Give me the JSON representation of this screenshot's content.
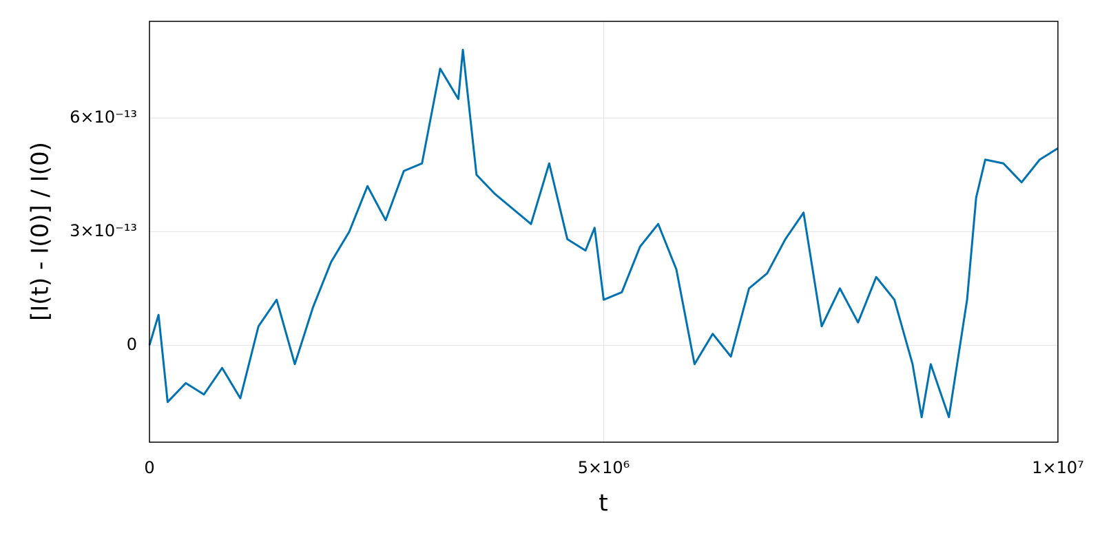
{
  "chart_data": {
    "type": "line",
    "x_label": "t",
    "y_label": "[I(t) - I(0)] / I(0)",
    "x": [
      0,
      100000,
      200000,
      400000,
      600000,
      800000,
      1000000,
      1200000,
      1400000,
      1600000,
      1800000,
      2000000,
      2200000,
      2400000,
      2600000,
      2800000,
      3000000,
      3200000,
      3400000,
      3450000,
      3600000,
      3800000,
      4000000,
      4200000,
      4400000,
      4600000,
      4800000,
      4900000,
      5000000,
      5200000,
      5400000,
      5600000,
      5800000,
      6000000,
      6200000,
      6400000,
      6600000,
      6800000,
      7000000,
      7200000,
      7400000,
      7600000,
      7800000,
      8000000,
      8200000,
      8400000,
      8500000,
      8600000,
      8800000,
      9000000,
      9100000,
      9200000,
      9400000,
      9600000,
      9800000,
      10000000
    ],
    "values": [
      0,
      8e-14,
      -1.5e-13,
      -1e-13,
      -1.3e-13,
      -6e-14,
      -1.4e-13,
      5e-14,
      1.2e-13,
      -5e-14,
      1e-13,
      2.2e-13,
      3e-13,
      4.2e-13,
      3.3e-13,
      4.6e-13,
      4.8e-13,
      7.3e-13,
      6.5e-13,
      7.8e-13,
      4.5e-13,
      4e-13,
      3.6e-13,
      3.2e-13,
      4.8e-13,
      2.8e-13,
      2.5e-13,
      3.1e-13,
      1.2e-13,
      1.4e-13,
      2.6e-13,
      3.2e-13,
      2e-13,
      -5e-14,
      3e-14,
      -3e-14,
      1.5e-13,
      1.9e-13,
      2.8e-13,
      3.5e-13,
      5e-14,
      1.5e-13,
      6e-14,
      1.8e-13,
      1.2e-13,
      -5e-14,
      -1.9e-13,
      -5e-14,
      -1.9e-13,
      1.2e-13,
      3.9e-13,
      4.9e-13,
      4.8e-13,
      4.3e-13,
      4.9e-13,
      5.2e-13
    ],
    "color": "#0072b2",
    "xlim": [
      0,
      10000000
    ],
    "ylim": [
      -2.56e-13,
      8.55e-13
    ],
    "xticks": [
      0,
      {
        "value": 5000000,
        "label": "5×10⁶"
      },
      {
        "value": 10000000,
        "label": "1×10⁷"
      }
    ],
    "yticks": [
      0,
      {
        "value": 3e-13,
        "label": "3×10⁻¹³"
      },
      {
        "value": 6e-13,
        "label": "6×10⁻¹³"
      }
    ],
    "grid": true
  }
}
